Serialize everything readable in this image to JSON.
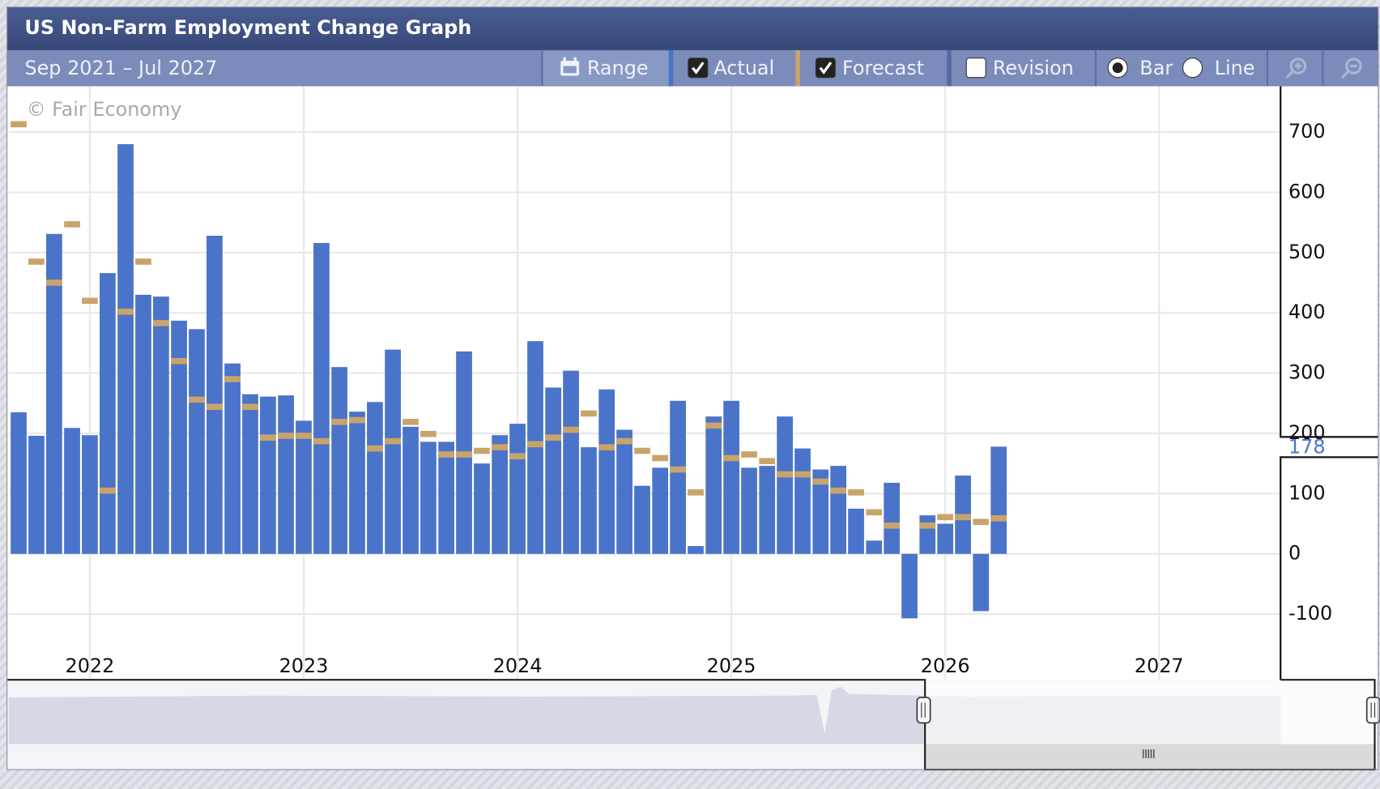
{
  "header": {
    "title": "US Non-Farm Employment Change Graph",
    "range": "Sep 2021 – Jul 2027"
  },
  "toolbar": {
    "range_button": "Range",
    "revision": {
      "label": "Revision",
      "checked": false
    },
    "bar": {
      "label": "Bar",
      "selected": true
    },
    "line": {
      "label": "Line",
      "selected": false
    }
  },
  "watermark": "© Fair Economy",
  "chart_data": {
    "type": "bar",
    "x": [
      2021.667,
      2021.75,
      2021.833,
      2021.917,
      2022,
      2022.083,
      2022.167,
      2022.25,
      2022.333,
      2022.417,
      2022.5,
      2022.583,
      2022.667,
      2022.75,
      2022.833,
      2022.917,
      2023,
      2023.083,
      2023.167,
      2023.25,
      2023.333,
      2023.417,
      2023.5,
      2023.583,
      2023.667,
      2023.75,
      2023.833,
      2023.917,
      2024,
      2024.083,
      2024.167,
      2024.25,
      2024.333,
      2024.417,
      2024.5,
      2024.583,
      2024.667,
      2024.75,
      2024.833,
      2024.917,
      2025,
      2025.083,
      2025.167,
      2025.25,
      2025.333,
      2025.417,
      2025.5,
      2025.583,
      2025.667,
      2025.75,
      2025.833,
      2025.917,
      2026,
      2026.083,
      2026.167,
      2026.25
    ],
    "series": [
      {
        "name": "Actual",
        "color": "#4a74c9",
        "mark": "bar",
        "checked": true,
        "values": [
          235,
          196,
          531,
          209,
          197,
          466,
          680,
          430,
          427,
          387,
          373,
          528,
          316,
          265,
          261,
          263,
          221,
          516,
          310,
          236,
          252,
          339,
          211,
          186,
          186,
          336,
          150,
          197,
          216,
          353,
          276,
          304,
          177,
          273,
          206,
          113,
          143,
          254,
          13,
          228,
          254,
          143,
          146,
          228,
          175,
          140,
          146,
          75,
          22,
          118,
          -107,
          64,
          50,
          130,
          -95,
          178
        ]
      },
      {
        "name": "Forecast",
        "color": "#c9a46a",
        "mark": "dash",
        "checked": true,
        "values": [
          713,
          485,
          450,
          547,
          420,
          105,
          402,
          485,
          383,
          320,
          256,
          244,
          290,
          244,
          193,
          196,
          196,
          187,
          219,
          222,
          175,
          187,
          219,
          199,
          165,
          165,
          171,
          177,
          162,
          182,
          193,
          206,
          233,
          177,
          187,
          171,
          159,
          140,
          102,
          213,
          159,
          165,
          154,
          132,
          132,
          120,
          105,
          102,
          69,
          47,
          null,
          47,
          61,
          61,
          53,
          59
        ]
      }
    ],
    "xlim": [
      2021.621,
      2027.568
    ],
    "xticks": [
      2022,
      2023,
      2024,
      2025,
      2026,
      2027
    ],
    "ylim": [
      -209,
      776
    ],
    "yticks": [
      -100,
      0,
      100,
      200,
      300,
      400,
      500,
      600,
      700
    ],
    "grid": true
  }
}
